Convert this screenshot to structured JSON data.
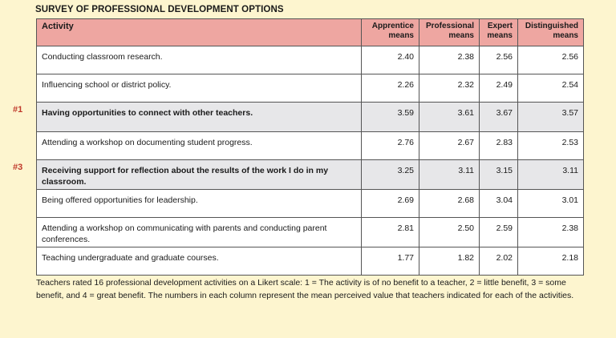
{
  "title": "SURVEY OF PROFESSIONAL DEVELOPMENT OPTIONS",
  "columns": {
    "activity": "Activity",
    "apprentice": [
      "Apprentice",
      "means"
    ],
    "professional": [
      "Professional",
      "means"
    ],
    "expert": [
      "Expert",
      "means"
    ],
    "distinguished": [
      "Distinguished",
      "means"
    ]
  },
  "rows": [
    {
      "marker": "",
      "highlight": false,
      "activity": "Conducting classroom research.",
      "apprentice": "2.40",
      "professional": "2.38",
      "expert": "2.56",
      "distinguished": "2.56"
    },
    {
      "marker": "",
      "highlight": false,
      "activity": "Influencing school or district policy.",
      "apprentice": "2.26",
      "professional": "2.32",
      "expert": "2.49",
      "distinguished": "2.54"
    },
    {
      "marker": "#1",
      "highlight": true,
      "activity": "Having opportunities to connect with other teachers.",
      "apprentice": "3.59",
      "professional": "3.61",
      "expert": "3.67",
      "distinguished": "3.57"
    },
    {
      "marker": "",
      "highlight": false,
      "activity": "Attending a workshop on documenting student progress.",
      "apprentice": "2.76",
      "professional": "2.67",
      "expert": "2.83",
      "distinguished": "2.53"
    },
    {
      "marker": "#3",
      "highlight": true,
      "activity": "Receiving support for reflection about the results of the work I do in my classroom.",
      "apprentice": "3.25",
      "professional": "3.11",
      "expert": "3.15",
      "distinguished": "3.11"
    },
    {
      "marker": "",
      "highlight": false,
      "activity": "Being offered opportunities for leadership.",
      "apprentice": "2.69",
      "professional": "2.68",
      "expert": "3.04",
      "distinguished": "3.01"
    },
    {
      "marker": "",
      "highlight": false,
      "activity": "Attending a workshop on communicating with parents and conducting parent conferences.",
      "apprentice": "2.81",
      "professional": "2.50",
      "expert": "2.59",
      "distinguished": "2.38"
    },
    {
      "marker": "",
      "highlight": false,
      "activity": "Teaching undergraduate and graduate courses.",
      "apprentice": "1.77",
      "professional": "1.82",
      "expert": "2.02",
      "distinguished": "2.18"
    }
  ],
  "caption": "Teachers rated 16 professional development activities on a Likert scale: 1 = The activity is of no benefit to a teacher, 2 = little benefit, 3 = some benefit, and 4 = great benefit. The numbers in each column represent the mean perceived value that teachers indicated for each of the activities.",
  "colors": {
    "page_background": "#fdf5cf",
    "header_fill": "#eea6a1",
    "highlight_row_fill": "#e7e7e9",
    "marker_text": "#c0392b"
  }
}
